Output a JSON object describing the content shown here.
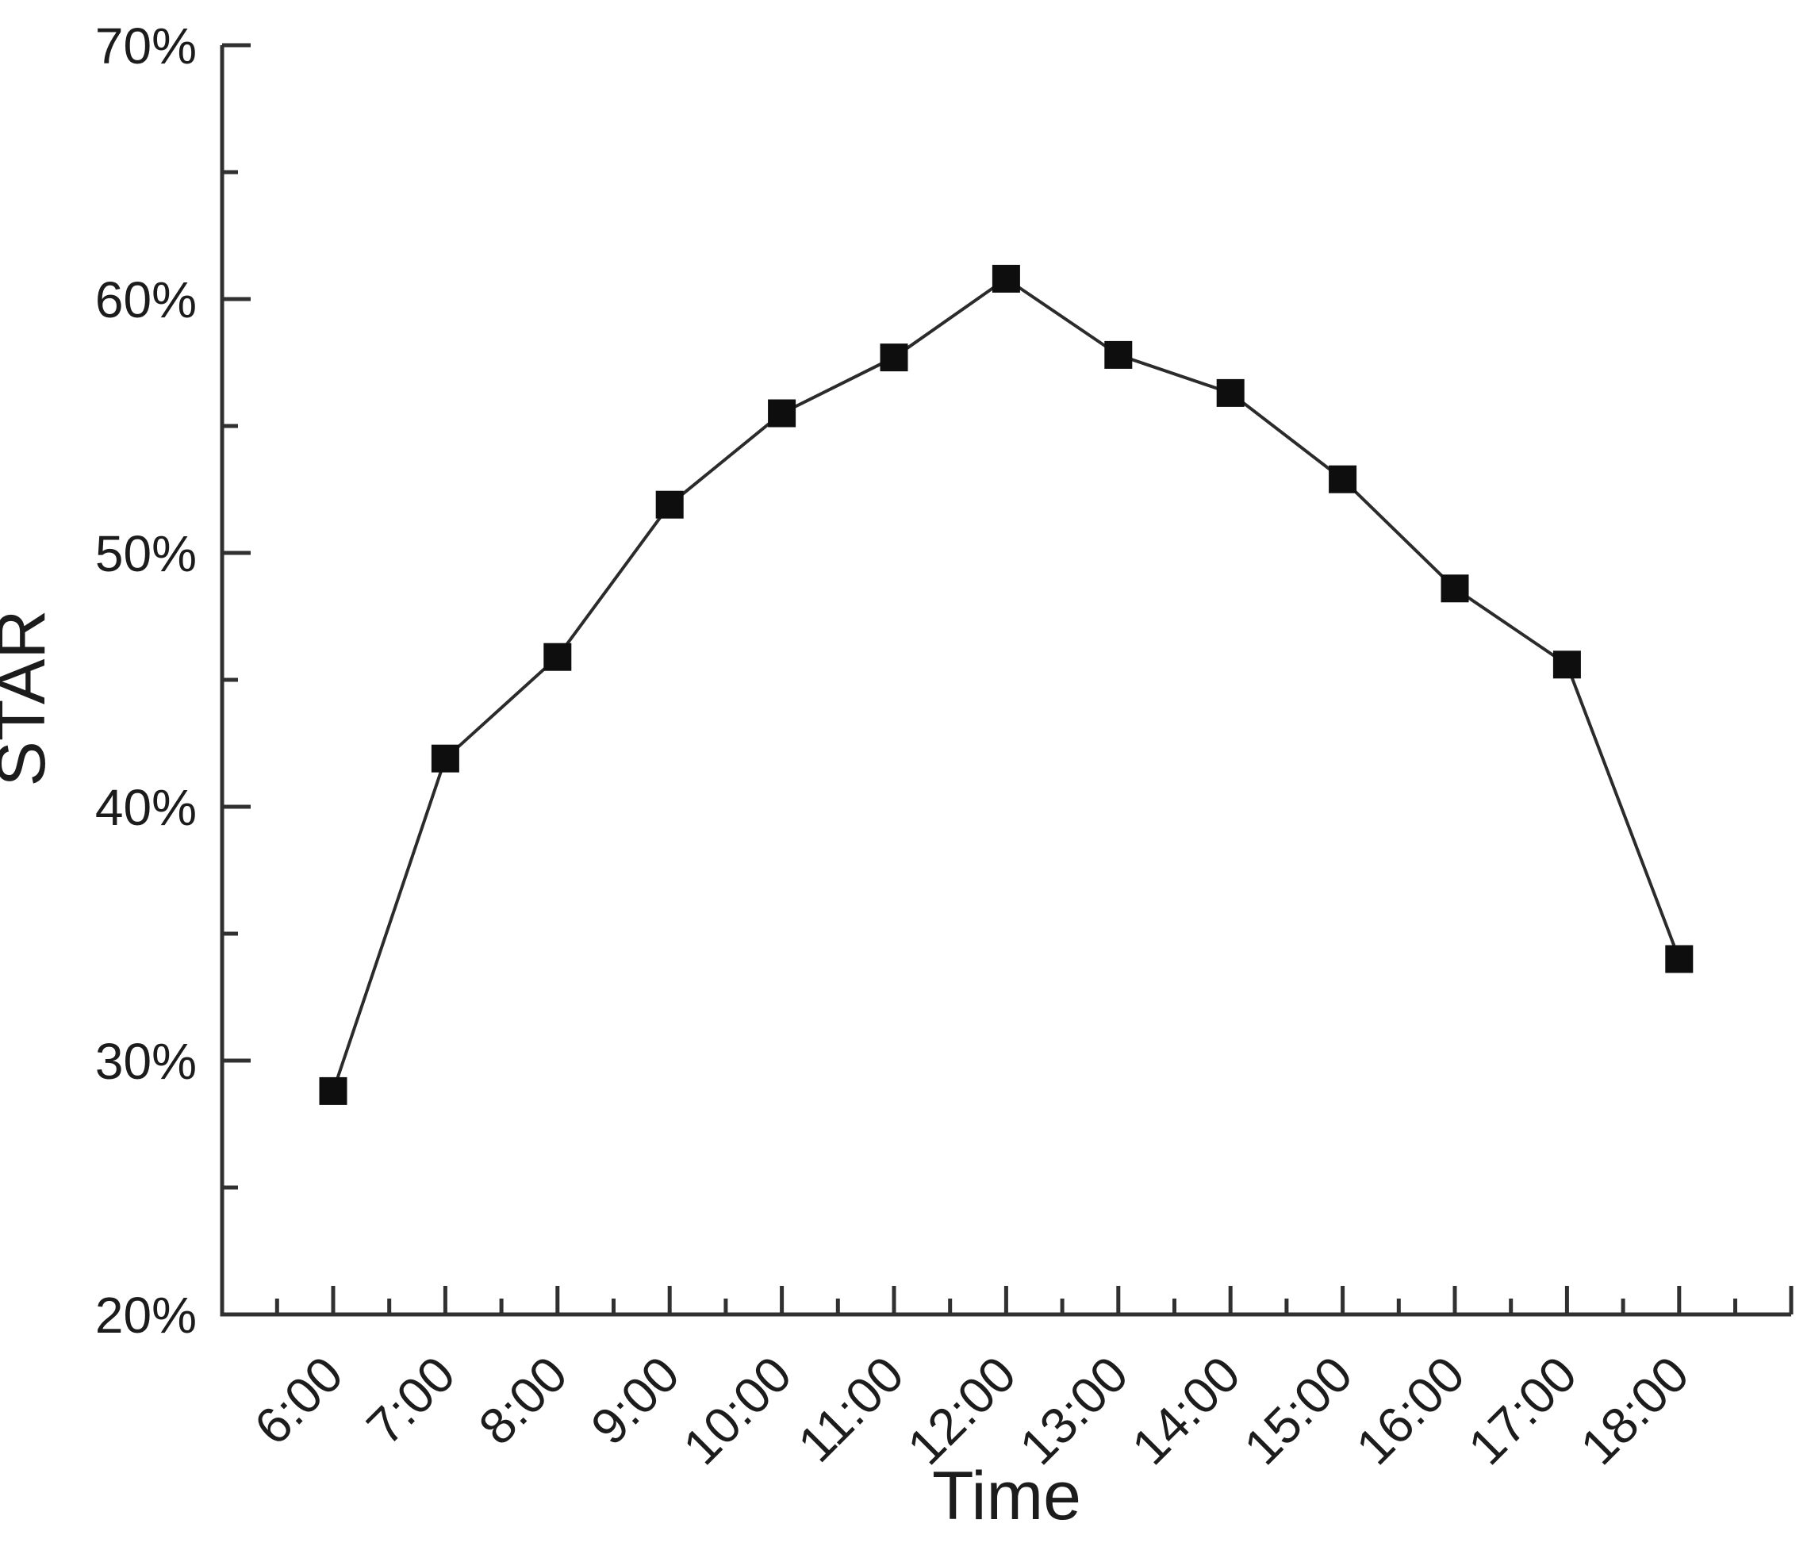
{
  "chart_data": {
    "type": "line",
    "title": "",
    "xlabel": "Time",
    "ylabel": "STAR",
    "categories": [
      "6:00",
      "7:00",
      "8:00",
      "9:00",
      "10:00",
      "11:00",
      "12:00",
      "13:00",
      "14:00",
      "15:00",
      "16:00",
      "17:00",
      "18:00"
    ],
    "series": [
      {
        "name": "STAR",
        "values": [
          28.8,
          41.9,
          45.9,
          51.9,
          55.5,
          57.7,
          60.8,
          57.8,
          56.3,
          52.9,
          48.6,
          45.6,
          34.0
        ]
      }
    ],
    "ylim": [
      20,
      70
    ],
    "y_ticks": [
      {
        "value": 20,
        "label": "20%"
      },
      {
        "value": 30,
        "label": "30%"
      },
      {
        "value": 40,
        "label": "40%"
      },
      {
        "value": 50,
        "label": "50%"
      },
      {
        "value": 60,
        "label": "60%"
      },
      {
        "value": 70,
        "label": "70%"
      }
    ],
    "y_minor_ticks": [
      25,
      35,
      45,
      55,
      65
    ],
    "x_tick_rotation_deg": -45,
    "grid": false,
    "legend": false,
    "marker_shape": "filled-square",
    "colors": {
      "background": "#ffffff",
      "axis": "#303030",
      "line": "#2b2b2b",
      "marker": "#0e0e0e",
      "text": "#1c1c1c"
    }
  }
}
